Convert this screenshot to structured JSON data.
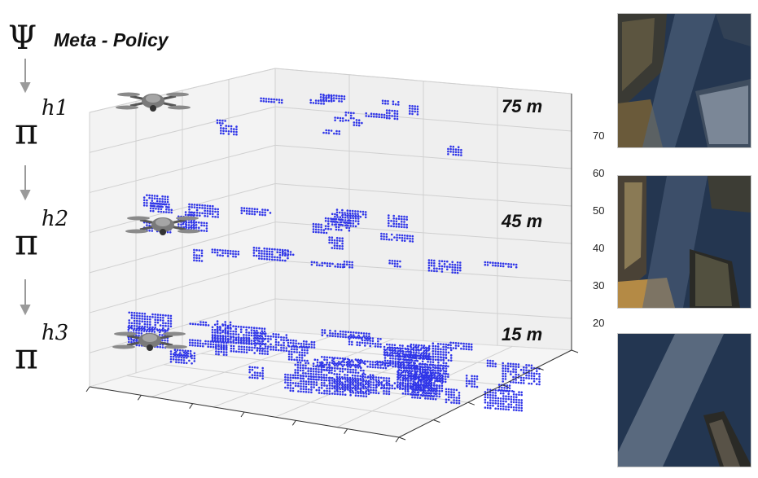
{
  "header": {
    "psi_symbol": "Ψ",
    "title": "Meta - Policy"
  },
  "policies": [
    {
      "symbol": "π",
      "level": "h1"
    },
    {
      "symbol": "π",
      "level": "h2"
    },
    {
      "symbol": "π",
      "level": "h3"
    }
  ],
  "altitudes": [
    "75 m",
    "45 m",
    "15 m"
  ],
  "z_ticks": [
    "70",
    "60",
    "50",
    "40",
    "30",
    "20"
  ],
  "colors": {
    "points": "#2f35e8",
    "grid": "#cfcfcf",
    "pane": "#f2f2f2",
    "arrow": "#9a9a9a"
  },
  "icons": [
    "drone-icon",
    "aerial-city-photo"
  ]
}
